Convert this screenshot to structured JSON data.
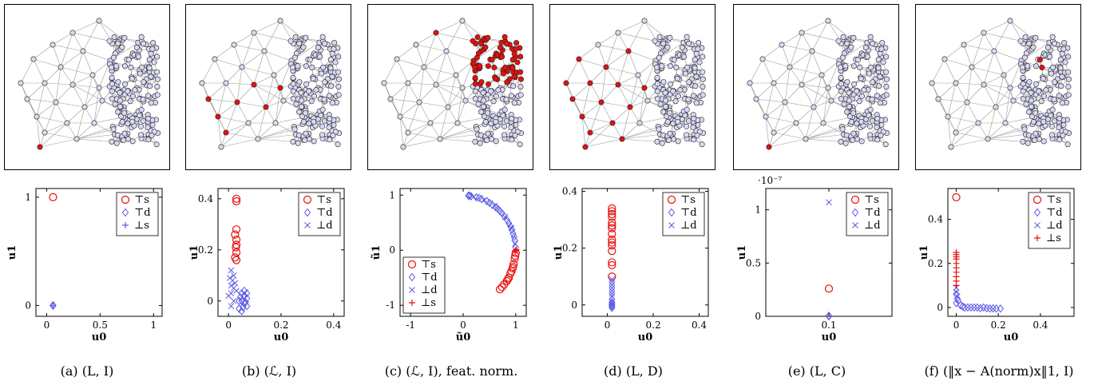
{
  "panels": [
    {
      "caption": "(a) (L, I)",
      "graph_highlight": "single-bottom-left",
      "chart_data": {
        "type": "scatter",
        "xlabel": "u0",
        "ylabel": "u1",
        "xlim": [
          -0.1,
          1.08
        ],
        "ylim": [
          -0.1,
          1.08
        ],
        "xticks": [
          0,
          0.5,
          1
        ],
        "yticks": [
          0,
          1
        ],
        "legend": [
          "⊤s",
          "⊤d",
          "⊥s"
        ],
        "legend_position": "top-right",
        "series": [
          {
            "name": "⊤s",
            "marker": "circle",
            "color": "#e8100c",
            "points": [
              [
                0.06,
                1.0
              ]
            ]
          },
          {
            "name": "⊤d",
            "marker": "diamond",
            "color": "#5a5ae6",
            "points": [
              [
                0.06,
                0.0
              ],
              [
                0.062,
                0.0
              ],
              [
                0.058,
                0.0
              ]
            ]
          },
          {
            "name": "⊥s",
            "marker": "plus",
            "color": "#5a5ae6",
            "points": [
              [
                0.06,
                0.0
              ]
            ]
          }
        ]
      }
    },
    {
      "caption": "(b) (ℒ, I)",
      "graph_highlight": "path-left",
      "chart_data": {
        "type": "scatter",
        "xlabel": "u0",
        "ylabel": "u1",
        "xlim": [
          -0.04,
          0.44
        ],
        "ylim": [
          -0.06,
          0.44
        ],
        "xticks": [
          0,
          0.2,
          0.4
        ],
        "yticks": [
          0,
          0.2,
          0.4
        ],
        "legend": [
          "⊤s",
          "⊤d",
          "⊥d"
        ],
        "legend_position": "top-right",
        "series": [
          {
            "name": "⊤s",
            "marker": "circle",
            "color": "#e8100c",
            "points": [
              [
                0.03,
                0.4
              ],
              [
                0.03,
                0.39
              ],
              [
                0.025,
                0.26
              ],
              [
                0.03,
                0.28
              ],
              [
                0.03,
                0.24
              ],
              [
                0.028,
                0.21
              ],
              [
                0.03,
                0.19
              ],
              [
                0.025,
                0.17
              ],
              [
                0.03,
                0.16
              ],
              [
                0.03,
                0.22
              ]
            ]
          },
          {
            "name": "⊤d",
            "marker": "diamond",
            "color": "#5a5ae6",
            "points": [
              [
                0.05,
                0.03
              ],
              [
                0.06,
                0.02
              ],
              [
                0.07,
                0.01
              ],
              [
                0.05,
                0.0
              ],
              [
                0.06,
                -0.01
              ],
              [
                0.07,
                -0.02
              ],
              [
                0.04,
                -0.03
              ],
              [
                0.05,
                -0.04
              ],
              [
                0.06,
                0.04
              ],
              [
                0.045,
                0.015
              ],
              [
                0.065,
                -0.005
              ],
              [
                0.055,
                -0.025
              ],
              [
                0.07,
                0.03
              ],
              [
                0.04,
                0.0
              ]
            ]
          },
          {
            "name": "⊥d",
            "marker": "x",
            "color": "#5a5ae6",
            "points": [
              [
                0.01,
                0.12
              ],
              [
                0.02,
                0.1
              ],
              [
                0.015,
                0.08
              ],
              [
                0.01,
                0.06
              ],
              [
                0.02,
                0.05
              ],
              [
                0.01,
                0.03
              ],
              [
                0.0,
                0.02
              ],
              [
                0.02,
                0.0
              ],
              [
                0.01,
                -0.02
              ],
              [
                0.025,
                0.07
              ],
              [
                0.005,
                0.09
              ],
              [
                0.03,
                0.04
              ]
            ]
          }
        ]
      }
    },
    {
      "caption": "(c) (ℒ, I), feat. norm.",
      "graph_highlight": "cluster-top-right",
      "chart_data": {
        "type": "scatter",
        "xlabel": "ũ0",
        "ylabel": "ũ1",
        "xlim": [
          -1.2,
          1.2
        ],
        "ylim": [
          -1.2,
          1.12
        ],
        "xticks": [
          -1,
          0,
          1
        ],
        "yticks": [
          -1,
          0,
          1
        ],
        "legend": [
          "⊤s",
          "⊤d",
          "⊥d",
          "⊥s"
        ],
        "legend_position": "bottom-left",
        "series": [
          {
            "name": "⊤s",
            "marker": "circle",
            "color": "#e8100c",
            "points": [
              [
                1.0,
                -0.05
              ],
              [
                0.98,
                -0.15
              ],
              [
                0.96,
                -0.25
              ],
              [
                0.94,
                -0.33
              ],
              [
                0.9,
                -0.42
              ],
              [
                0.87,
                -0.5
              ],
              [
                0.83,
                -0.56
              ],
              [
                0.78,
                -0.62
              ],
              [
                0.74,
                -0.67
              ],
              [
                0.7,
                -0.71
              ],
              [
                0.99,
                -0.1
              ],
              [
                0.95,
                -0.3
              ],
              [
                0.92,
                -0.38
              ],
              [
                0.85,
                -0.53
              ]
            ]
          },
          {
            "name": "⊤d",
            "marker": "diamond",
            "color": "#5a5ae6",
            "points": [
              [
                0.1,
                0.99
              ],
              [
                0.15,
                0.98
              ],
              [
                0.25,
                0.96
              ],
              [
                0.35,
                0.93
              ],
              [
                0.45,
                0.89
              ],
              [
                0.55,
                0.83
              ],
              [
                0.62,
                0.78
              ],
              [
                0.7,
                0.71
              ],
              [
                0.78,
                0.62
              ],
              [
                0.84,
                0.54
              ],
              [
                0.9,
                0.43
              ],
              [
                0.95,
                0.3
              ],
              [
                0.98,
                0.18
              ],
              [
                1.0,
                0.05
              ],
              [
                0.12,
                0.99
              ],
              [
                0.3,
                0.95
              ],
              [
                0.5,
                0.86
              ],
              [
                0.66,
                0.75
              ],
              [
                0.74,
                0.67
              ],
              [
                0.87,
                0.49
              ],
              [
                0.93,
                0.37
              ],
              [
                0.97,
                0.24
              ]
            ]
          },
          {
            "name": "⊥d",
            "marker": "x",
            "color": "#5a5ae6",
            "points": [
              [
                0.2,
                0.97
              ],
              [
                0.4,
                0.91
              ],
              [
                0.6,
                0.8
              ],
              [
                0.8,
                0.6
              ],
              [
                0.92,
                0.4
              ],
              [
                0.99,
                0.12
              ]
            ]
          },
          {
            "name": "⊥s",
            "marker": "plus",
            "color": "#e8100c",
            "points": [
              [
                1.0,
                0.0
              ],
              [
                0.99,
                -0.02
              ],
              [
                1.01,
                0.01
              ]
            ]
          }
        ]
      }
    },
    {
      "caption": "(d) (L, D)",
      "graph_highlight": "spread-left",
      "chart_data": {
        "type": "scatter",
        "xlabel": "u0",
        "ylabel": "u1",
        "xlim": [
          -0.11,
          0.44
        ],
        "ylim": [
          -0.04,
          0.41
        ],
        "xticks": [
          0,
          0.2,
          0.4
        ],
        "yticks": [
          0,
          0.2,
          0.4
        ],
        "legend": [
          "⊤s",
          "⊤d",
          "⊥d"
        ],
        "legend_position": "top-right",
        "series": [
          {
            "name": "⊤s",
            "marker": "circle",
            "color": "#e8100c",
            "points": [
              [
                0.02,
                0.34
              ],
              [
                0.02,
                0.33
              ],
              [
                0.02,
                0.32
              ],
              [
                0.02,
                0.31
              ],
              [
                0.02,
                0.29
              ],
              [
                0.02,
                0.28
              ],
              [
                0.02,
                0.27
              ],
              [
                0.02,
                0.25
              ],
              [
                0.02,
                0.23
              ],
              [
                0.02,
                0.22
              ],
              [
                0.02,
                0.21
              ],
              [
                0.02,
                0.19
              ],
              [
                0.02,
                0.15
              ],
              [
                0.02,
                0.14
              ],
              [
                0.02,
                0.1
              ]
            ]
          },
          {
            "name": "⊤d",
            "marker": "diamond",
            "color": "#5a5ae6",
            "points": [
              [
                0.02,
                0.02
              ],
              [
                0.02,
                0.01
              ],
              [
                0.02,
                0.0
              ],
              [
                0.02,
                -0.01
              ],
              [
                0.02,
                0.005
              ],
              [
                0.02,
                -0.005
              ]
            ]
          },
          {
            "name": "⊥d",
            "marker": "x",
            "color": "#5a5ae6",
            "points": [
              [
                0.02,
                0.09
              ],
              [
                0.02,
                0.08
              ],
              [
                0.02,
                0.07
              ],
              [
                0.02,
                0.06
              ],
              [
                0.02,
                0.05
              ],
              [
                0.02,
                0.04
              ],
              [
                0.02,
                0.03
              ]
            ]
          }
        ]
      }
    },
    {
      "caption": "(e) (L, C)",
      "graph_highlight": "single-bottom-left",
      "chart_data": {
        "type": "scatter",
        "xlabel": "u0",
        "ylabel": "u1",
        "multiplier": "·10⁻⁷",
        "xlim": [
          0.0,
          0.2
        ],
        "ylim": [
          0,
          1.2
        ],
        "xticks": [
          0.1
        ],
        "yticks": [
          0,
          0.5,
          1
        ],
        "legend": [
          "⊤s",
          "⊤d",
          "⊥d"
        ],
        "legend_position": "top-right",
        "series": [
          {
            "name": "⊤s",
            "marker": "circle",
            "color": "#e8100c",
            "points": [
              [
                0.1,
                0.26
              ]
            ]
          },
          {
            "name": "⊤d",
            "marker": "diamond",
            "color": "#5a5ae6",
            "points": [
              [
                0.1,
                0.0
              ],
              [
                0.1,
                0.005
              ]
            ]
          },
          {
            "name": "⊥d",
            "marker": "x",
            "color": "#5a5ae6",
            "points": [
              [
                0.1,
                1.07
              ]
            ]
          }
        ]
      }
    },
    {
      "caption": "(f) (‖x − A(norm)x‖1, I)",
      "graph_highlight": "small-cluster-center",
      "chart_data": {
        "type": "scatter",
        "xlabel": "u0",
        "ylabel": "u1",
        "xlim": [
          -0.04,
          0.56
        ],
        "ylim": [
          -0.04,
          0.54
        ],
        "xticks": [
          0,
          0.2,
          0.4
        ],
        "yticks": [
          0,
          0.2,
          0.4
        ],
        "legend": [
          "⊤s",
          "⊤d",
          "⊥d",
          "⊥s"
        ],
        "legend_position": "top-right",
        "series": [
          {
            "name": "⊤s",
            "marker": "circle",
            "color": "#e8100c",
            "points": [
              [
                0.0,
                0.5
              ]
            ]
          },
          {
            "name": "⊤d",
            "marker": "diamond",
            "color": "#5a5ae6",
            "points": [
              [
                0.0,
                0.06
              ],
              [
                0.01,
                0.03
              ],
              [
                0.02,
                0.01
              ],
              [
                0.04,
                0.0
              ],
              [
                0.07,
                0.0
              ],
              [
                0.1,
                0.0
              ],
              [
                0.13,
                0.0
              ],
              [
                0.16,
                -0.005
              ],
              [
                0.19,
                -0.005
              ],
              [
                0.21,
                -0.005
              ],
              [
                0.0,
                0.02
              ],
              [
                0.005,
                0.04
              ],
              [
                0.03,
                0.005
              ],
              [
                0.055,
                0.0
              ],
              [
                0.085,
                0.0
              ],
              [
                0.115,
                -0.003
              ],
              [
                0.145,
                -0.003
              ],
              [
                0.175,
                -0.004
              ]
            ]
          },
          {
            "name": "⊥d",
            "marker": "x",
            "color": "#5a5ae6",
            "points": [
              [
                0.0,
                0.09
              ],
              [
                0.0,
                0.07
              ],
              [
                0.005,
                0.05
              ]
            ]
          },
          {
            "name": "⊥s",
            "marker": "plus",
            "color": "#e8100c",
            "points": [
              [
                0.0,
                0.25
              ],
              [
                0.0,
                0.24
              ],
              [
                0.0,
                0.23
              ],
              [
                0.0,
                0.22
              ],
              [
                0.0,
                0.2
              ],
              [
                0.0,
                0.18
              ],
              [
                0.0,
                0.16
              ],
              [
                0.0,
                0.14
              ],
              [
                0.0,
                0.12
              ],
              [
                0.0,
                0.1
              ]
            ]
          }
        ]
      }
    }
  ]
}
